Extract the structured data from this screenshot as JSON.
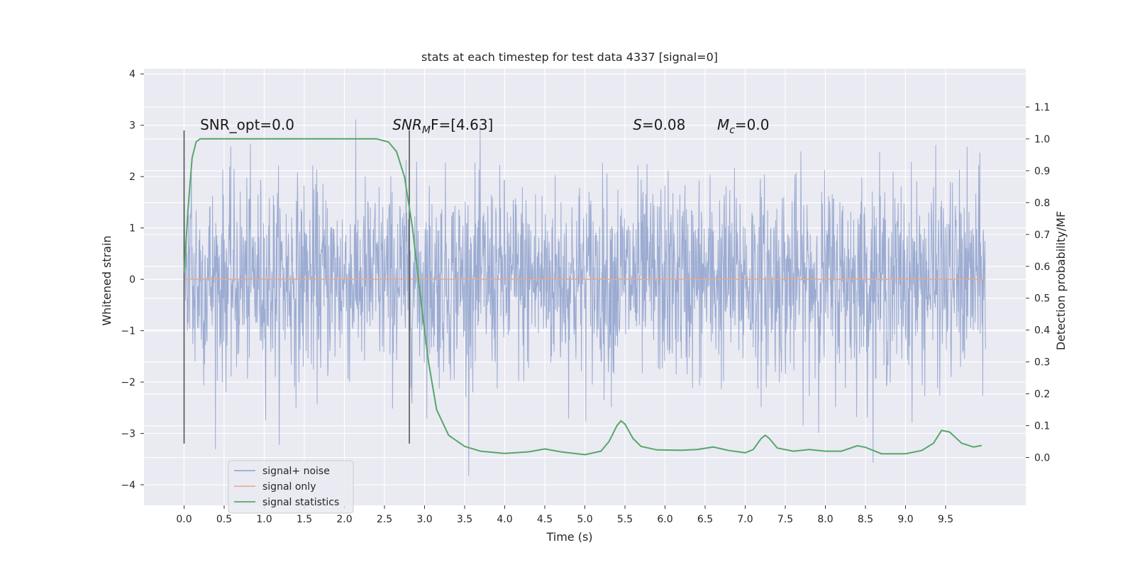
{
  "chart_data": {
    "type": "line",
    "title": "stats at each timestep for test data 4337 [signal=0]",
    "xlabel": "Time (s)",
    "ylabel": "Whitened strain",
    "y2label": "Detection probability/MF",
    "xlim": [
      -0.5,
      10.5
    ],
    "ylim": [
      -4.4,
      4.1
    ],
    "y2lim": [
      -0.15,
      1.22
    ],
    "x_ticks": [
      0.0,
      0.5,
      1.0,
      1.5,
      2.0,
      2.5,
      3.0,
      3.5,
      4.0,
      4.5,
      5.0,
      5.5,
      6.0,
      6.5,
      7.0,
      7.5,
      8.0,
      8.5,
      9.0,
      9.5
    ],
    "x_tick_labels": [
      "0.0",
      "0.5",
      "1.0",
      "1.5",
      "2.0",
      "2.5",
      "3.0",
      "3.5",
      "4.0",
      "4.5",
      "5.0",
      "5.5",
      "6.0",
      "6.5",
      "7.0",
      "7.5",
      "8.0",
      "8.5",
      "9.0",
      "9.5"
    ],
    "y_ticks": [
      -4,
      -3,
      -2,
      -1,
      0,
      1,
      2,
      3,
      4
    ],
    "y_tick_labels": [
      "−4",
      "−3",
      "−2",
      "−1",
      "0",
      "1",
      "2",
      "3",
      "4"
    ],
    "y2_ticks": [
      0.0,
      0.1,
      0.2,
      0.3,
      0.4,
      0.5,
      0.6,
      0.7,
      0.8,
      0.9,
      1.0,
      1.1
    ],
    "y2_tick_labels": [
      "0.0",
      "0.1",
      "0.2",
      "0.3",
      "0.4",
      "0.5",
      "0.6",
      "0.7",
      "0.8",
      "0.9",
      "1.0",
      "1.1"
    ],
    "grid": true,
    "legend_position": "lower-left",
    "series": [
      {
        "name": "signal+ noise",
        "color": "#8da0cb",
        "kind": "noise",
        "x_range": [
          0.0,
          10.0
        ],
        "sigma": 0.95,
        "clip": [
          -4.0,
          3.7
        ]
      },
      {
        "name": "signal only",
        "color": "#e8a88a",
        "kind": "flat",
        "x": [
          0.0,
          10.0
        ],
        "y": [
          0.0,
          0.0
        ]
      },
      {
        "name": "signal statistics",
        "color": "#55a868",
        "axis": "right",
        "x": [
          0.0,
          0.05,
          0.1,
          0.15,
          0.2,
          0.3,
          0.5,
          1.0,
          1.5,
          2.0,
          2.4,
          2.55,
          2.65,
          2.75,
          2.85,
          2.95,
          3.05,
          3.15,
          3.3,
          3.5,
          3.7,
          4.0,
          4.3,
          4.5,
          4.7,
          5.0,
          5.2,
          5.3,
          5.4,
          5.45,
          5.5,
          5.6,
          5.7,
          5.9,
          6.2,
          6.4,
          6.6,
          6.8,
          7.0,
          7.1,
          7.2,
          7.25,
          7.3,
          7.4,
          7.6,
          7.8,
          8.0,
          8.2,
          8.4,
          8.5,
          8.7,
          9.0,
          9.2,
          9.35,
          9.45,
          9.55,
          9.7,
          9.85,
          9.95
        ],
        "y": [
          0.58,
          0.78,
          0.94,
          0.99,
          1.0,
          1.0,
          1.0,
          1.0,
          1.0,
          1.0,
          1.0,
          0.99,
          0.96,
          0.88,
          0.72,
          0.5,
          0.3,
          0.15,
          0.07,
          0.035,
          0.02,
          0.013,
          0.018,
          0.027,
          0.018,
          0.009,
          0.02,
          0.05,
          0.1,
          0.115,
          0.105,
          0.06,
          0.035,
          0.024,
          0.023,
          0.025,
          0.033,
          0.022,
          0.015,
          0.025,
          0.06,
          0.07,
          0.06,
          0.03,
          0.02,
          0.025,
          0.02,
          0.02,
          0.037,
          0.032,
          0.012,
          0.012,
          0.022,
          0.045,
          0.085,
          0.08,
          0.045,
          0.033,
          0.038
        ]
      }
    ],
    "vlines": [
      0.0,
      2.81
    ],
    "annotations": [
      {
        "id": "snr-opt",
        "x": 0.2,
        "text": "SNR_opt=0.0"
      },
      {
        "id": "snr-mf",
        "x": 2.6,
        "main": "SNR",
        "sub": "M",
        "rest": "F=[4.63]"
      },
      {
        "id": "s-stat",
        "x": 5.6,
        "main": "S",
        "rest": "=0.08"
      },
      {
        "id": "mc-stat",
        "x": 6.65,
        "main": "M",
        "sub": "c",
        "rest": "=0.0"
      }
    ]
  }
}
